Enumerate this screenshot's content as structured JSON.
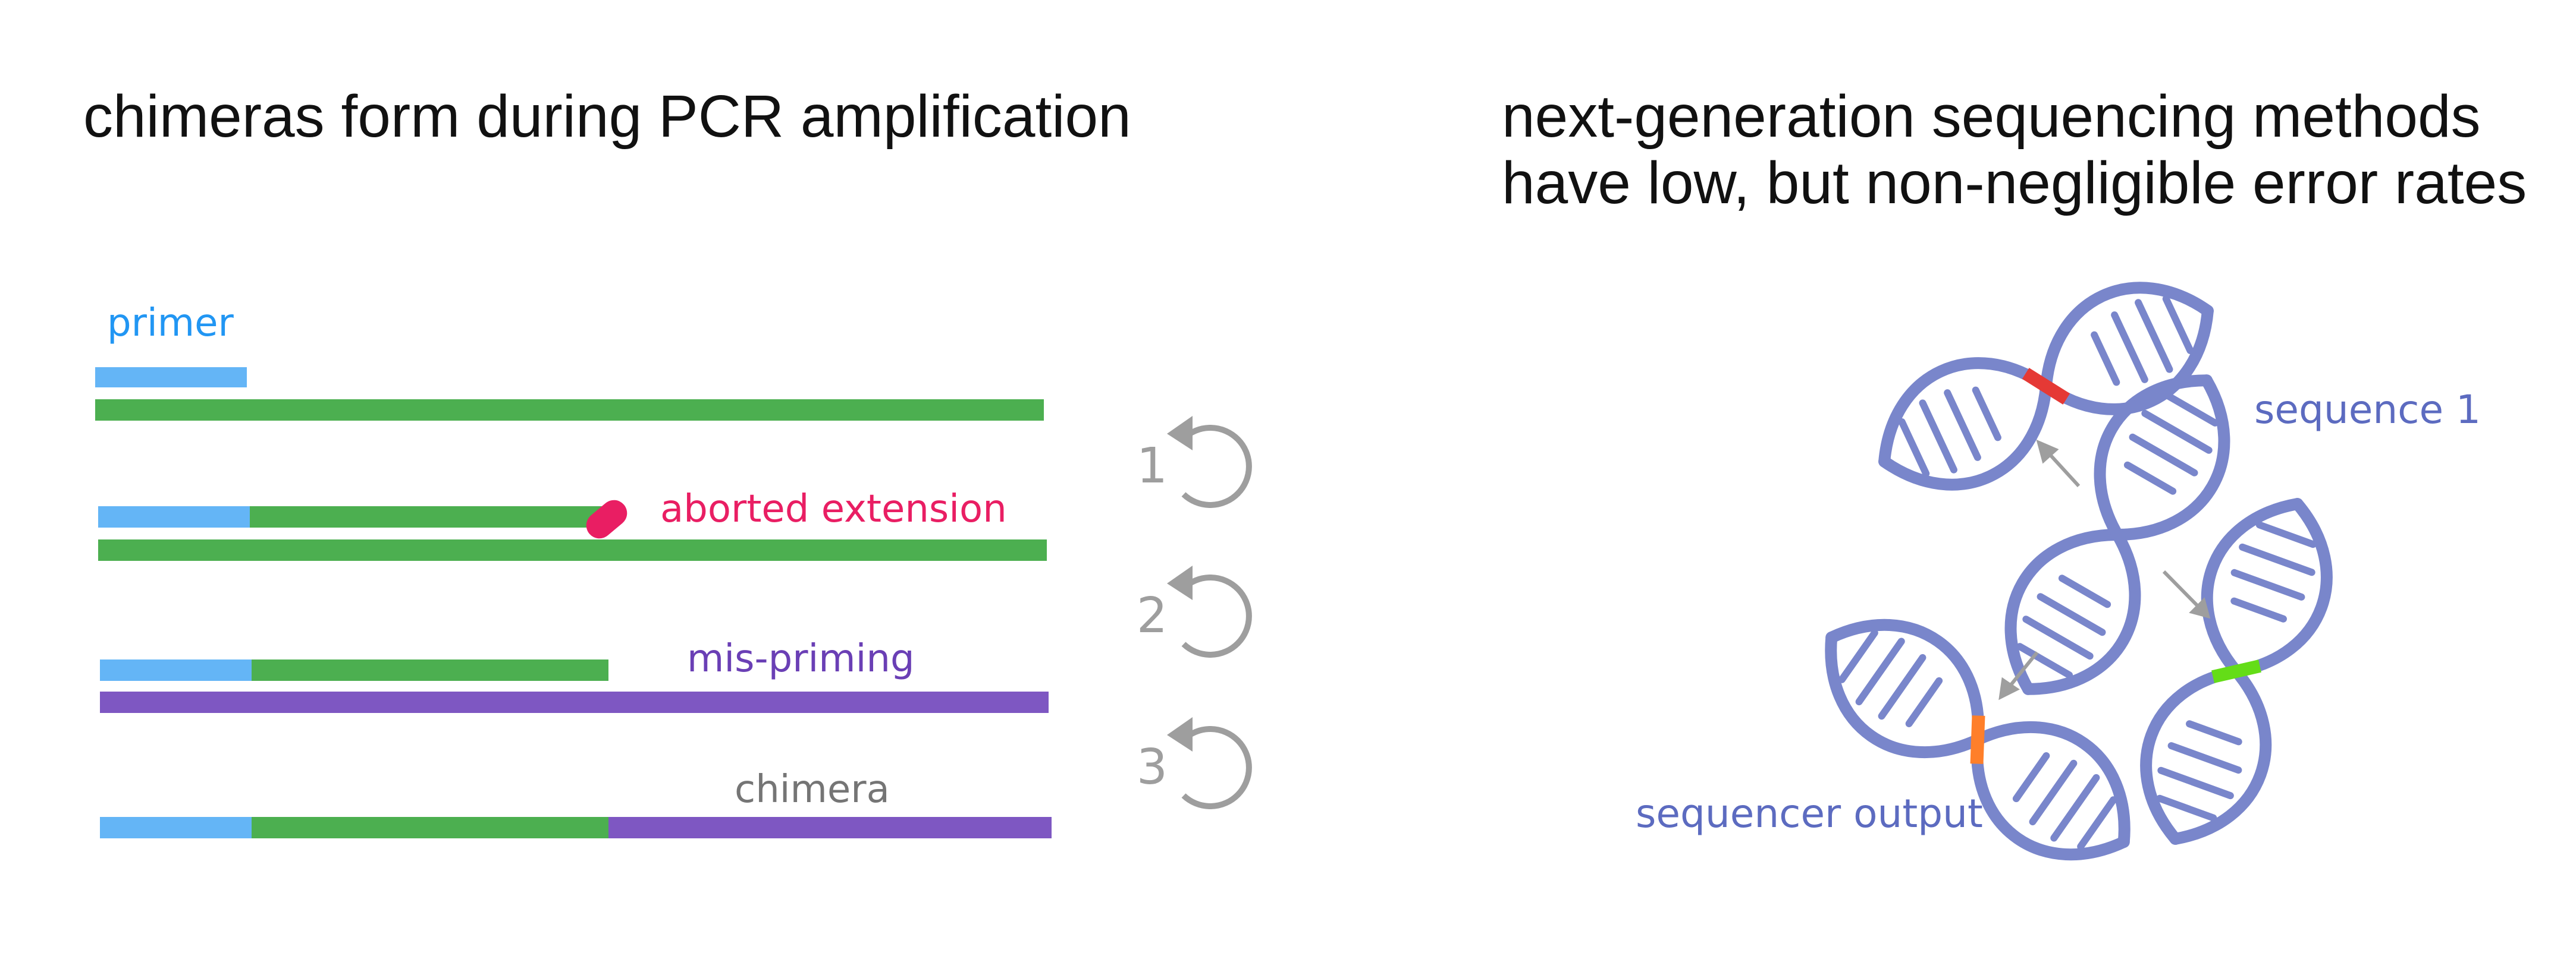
{
  "left_panel": {
    "title": "chimeras form during PCR amplification",
    "labels": {
      "primer": "primer",
      "aborted": "aborted extension",
      "mispriming": "mis-priming",
      "chimera": "chimera"
    },
    "cycles": [
      "1",
      "2",
      "3"
    ]
  },
  "right_panel": {
    "title_line1": "next-generation sequencing methods",
    "title_line2": "have low, but non-negligible error rates",
    "labels": {
      "sequence": "sequence 1",
      "output": "sequencer output"
    }
  },
  "colors": {
    "primer_blue": "#64b5f6",
    "template_green": "#4caf50",
    "misprime_purple": "#7e57c2",
    "abort_pink": "#e91e63",
    "cycle_gray": "#9e9e9e",
    "dna_blue": "#7986cb",
    "error_red": "#e53935",
    "error_green": "#64dd17",
    "error_orange": "#ff7f2a"
  }
}
